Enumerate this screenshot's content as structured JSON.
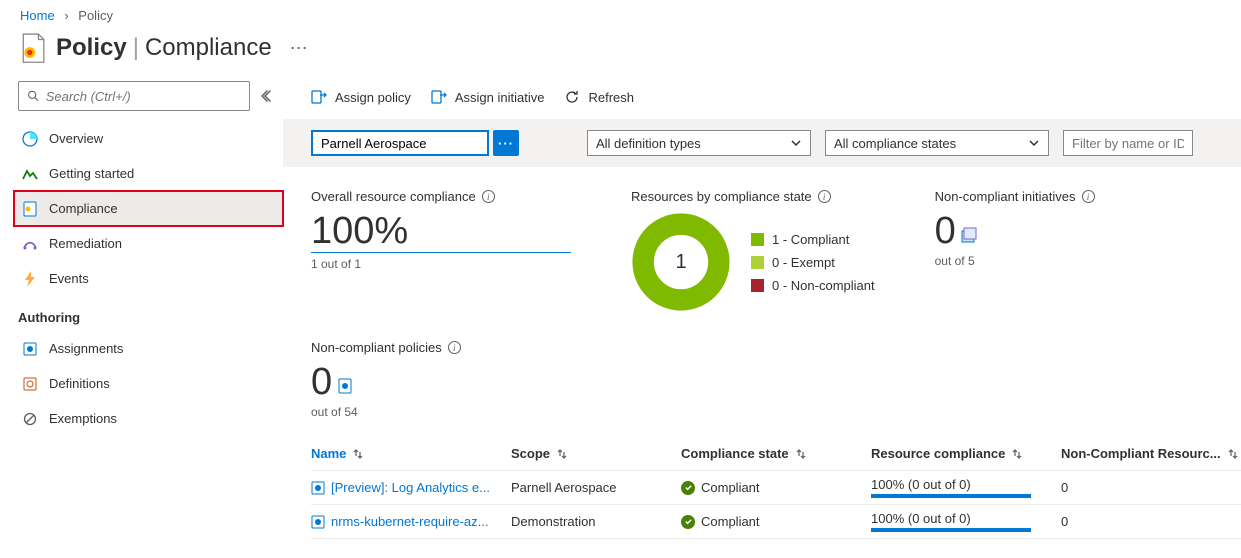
{
  "breadcrumb": {
    "home": "Home",
    "current": "Policy"
  },
  "header": {
    "title_bold": "Policy",
    "title_light": "Compliance"
  },
  "search_placeholder": "Search (Ctrl+/)",
  "nav": {
    "overview": "Overview",
    "getting_started": "Getting started",
    "compliance": "Compliance",
    "remediation": "Remediation",
    "events": "Events",
    "authoring_header": "Authoring",
    "assignments": "Assignments",
    "definitions": "Definitions",
    "exemptions": "Exemptions"
  },
  "toolbar": {
    "assign_policy": "Assign policy",
    "assign_initiative": "Assign initiative",
    "refresh": "Refresh"
  },
  "filters": {
    "scope_value": "Parnell Aerospace",
    "definition_types": "All definition types",
    "compliance_states": "All compliance states",
    "search_placeholder": "Filter by name or ID..."
  },
  "metrics": {
    "overall_title": "Overall resource compliance",
    "overall_value": "100%",
    "overall_sub": "1 out of 1",
    "bystate_title": "Resources by compliance state",
    "donut_center": "1",
    "legend_compliant": "1 - Compliant",
    "legend_exempt": "0 - Exempt",
    "legend_noncompliant": "0 - Non-compliant",
    "nci_title": "Non-compliant initiatives",
    "nci_value": "0",
    "nci_sub": "out of 5",
    "ncp_title": "Non-compliant policies",
    "ncp_value": "0",
    "ncp_sub": "out of 54"
  },
  "colors": {
    "compliant": "#7fba00",
    "exempt": "#b0d136",
    "noncompliant": "#a4262c",
    "link": "#0078d4"
  },
  "table": {
    "cols": {
      "name": "Name",
      "scope": "Scope",
      "state": "Compliance state",
      "rc": "Resource compliance",
      "ncr": "Non-Compliant Resourc..."
    },
    "rows": [
      {
        "name": "[Preview]: Log Analytics e...",
        "scope": "Parnell Aerospace",
        "state": "Compliant",
        "rc": "100% (0 out of 0)",
        "ncr": "0"
      },
      {
        "name": "nrms-kubernet-require-az...",
        "scope": "Demonstration",
        "state": "Compliant",
        "rc": "100% (0 out of 0)",
        "ncr": "0"
      }
    ]
  }
}
